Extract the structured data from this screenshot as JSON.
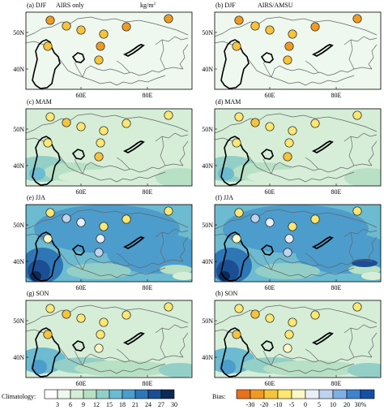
{
  "header": {
    "left_title": "AIRS only",
    "right_title": "AIRS/AMSU",
    "units": "kg/m",
    "units_sup": "2"
  },
  "panels": [
    {
      "label": "(a) DJF",
      "season": "DJF"
    },
    {
      "label": "(b) DJF",
      "season": "DJF"
    },
    {
      "label": "(c) MAM",
      "season": "MAM"
    },
    {
      "label": "(d) MAM",
      "season": "MAM"
    },
    {
      "label": "(e) JJA",
      "season": "JJA"
    },
    {
      "label": "(f) JJA",
      "season": "JJA"
    },
    {
      "label": "(g) SON",
      "season": "SON"
    },
    {
      "label": "(h) SON",
      "season": "SON"
    }
  ],
  "axes": {
    "lat_ticks": [
      "50N",
      "40N"
    ],
    "lon_ticks": [
      "60E",
      "80E"
    ]
  },
  "climatology_bar": {
    "label": "Climatology:",
    "ticks": [
      "3",
      "6",
      "9",
      "12",
      "15",
      "18",
      "21",
      "24",
      "27",
      "30"
    ],
    "colors": [
      "#ffffff",
      "#eef8ee",
      "#d6eed8",
      "#b7e0c4",
      "#93cfc6",
      "#6cbbd0",
      "#4c9dcc",
      "#2f76b6",
      "#1b4e93",
      "#0d2a55"
    ]
  },
  "bias_bar": {
    "label": "Bias:",
    "ticks": [
      "-30",
      "-20",
      "-10",
      "-5",
      "0",
      "5",
      "10",
      "20",
      "30%"
    ],
    "colors": [
      "#e8711b",
      "#f09a22",
      "#f6c33a",
      "#fbe771",
      "#fdf9c4",
      "#e9eef8",
      "#bed3ee",
      "#7fb0e3",
      "#3f82cf",
      "#1450a8"
    ]
  }
}
